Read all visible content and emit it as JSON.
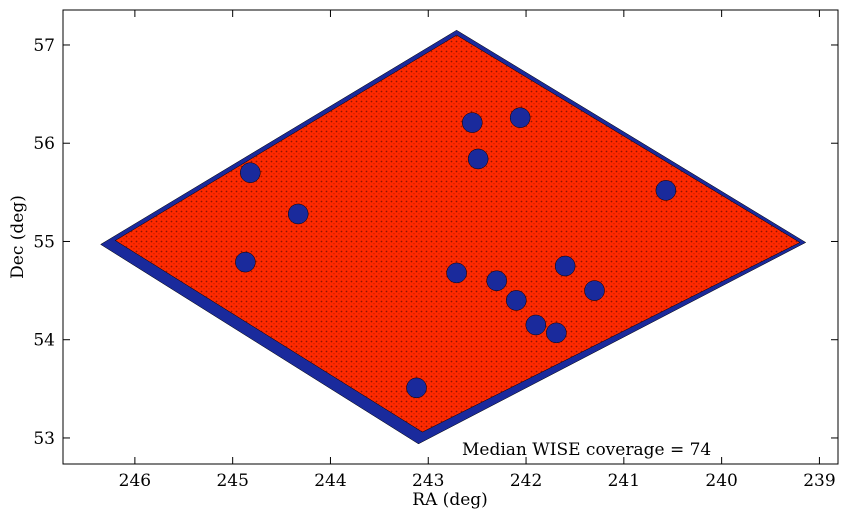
{
  "chart_data": {
    "type": "scatter",
    "xlabel": "RA (deg)",
    "ylabel": "Dec (deg)",
    "annotation": "Median WISE coverage = 74",
    "xlim": [
      246.735,
      238.81
    ],
    "ylim": [
      52.735,
      57.356
    ],
    "xticks": [
      246,
      245,
      244,
      243,
      242,
      241,
      240,
      239
    ],
    "yticks": [
      53,
      54,
      55,
      56,
      57
    ],
    "series": [
      {
        "shape": "region",
        "color": "#1a2a9c",
        "x": [
          246.35,
          242.71,
          239.14,
          243.1
        ],
        "y": [
          54.97,
          57.15,
          54.99,
          52.94
        ]
      },
      {
        "shape": "region",
        "color": "#ff2a00",
        "x": [
          246.2,
          242.71,
          239.2,
          243.06
        ],
        "y": [
          55.01,
          57.1,
          54.99,
          53.06
        ]
      },
      {
        "shape": "points",
        "color": "#1a2a9c",
        "x": [
          244.82,
          242.55,
          242.06,
          242.49,
          240.57,
          244.33,
          244.87,
          242.71,
          241.69,
          243.12,
          242.3,
          242.1,
          241.9,
          241.6,
          241.3
        ],
        "y": [
          55.7,
          56.21,
          56.26,
          55.84,
          55.52,
          55.28,
          54.79,
          54.68,
          54.07,
          53.51,
          54.6,
          54.4,
          54.15,
          54.75,
          54.5
        ]
      }
    ]
  }
}
